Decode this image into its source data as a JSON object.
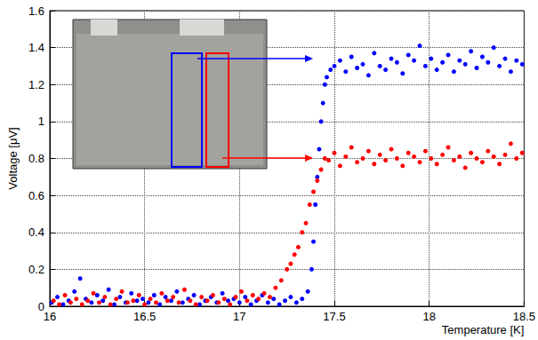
{
  "chart_data": {
    "type": "scatter",
    "x_label": "Temperature [K]",
    "y_label": "Voltage [μV]",
    "xlim": [
      16,
      18.5
    ],
    "xticks": [
      16,
      16.5,
      17,
      17.5,
      18,
      18.5
    ],
    "ylim": [
      0,
      1.6
    ],
    "yticks": [
      0,
      0.2,
      0.4,
      0.6,
      0.8,
      1,
      1.2,
      1.4,
      1.6
    ],
    "grid": true,
    "marker": "circle",
    "series": [
      {
        "color": "#0000ff",
        "x": [
          16.01,
          16.04,
          16.07,
          16.1,
          16.13,
          16.16,
          16.19,
          16.22,
          16.25,
          16.28,
          16.31,
          16.34,
          16.37,
          16.4,
          16.43,
          16.46,
          16.49,
          16.52,
          16.55,
          16.58,
          16.61,
          16.64,
          16.67,
          16.7,
          16.73,
          16.76,
          16.79,
          16.82,
          16.85,
          16.88,
          16.91,
          16.94,
          16.97,
          17.0,
          17.03,
          17.06,
          17.09,
          17.12,
          17.15,
          17.18,
          17.21,
          17.24,
          17.27,
          17.3,
          17.33,
          17.36,
          17.38,
          17.39,
          17.4,
          17.41,
          17.42,
          17.43,
          17.44,
          17.45,
          17.46,
          17.48,
          17.5,
          17.53,
          17.56,
          17.59,
          17.62,
          17.65,
          17.68,
          17.71,
          17.74,
          17.77,
          17.8,
          17.83,
          17.86,
          17.89,
          17.92,
          17.95,
          17.98,
          18.01,
          18.04,
          18.07,
          18.1,
          18.13,
          18.16,
          18.19,
          18.22,
          18.25,
          18.28,
          18.31,
          18.34,
          18.37,
          18.4,
          18.43,
          18.46,
          18.49
        ],
        "values": [
          0.02,
          0.05,
          0.01,
          0.03,
          0.08,
          0.15,
          0.04,
          0.02,
          0.06,
          0.03,
          0.09,
          0.01,
          0.05,
          0.02,
          0.07,
          0.03,
          0.04,
          0.02,
          0.06,
          0.01,
          0.05,
          0.03,
          0.08,
          0.02,
          0.04,
          0.06,
          0.01,
          0.03,
          0.05,
          0.02,
          0.07,
          0.03,
          0.04,
          0.02,
          0.05,
          0.01,
          0.03,
          0.06,
          0.02,
          0.04,
          0.01,
          0.03,
          0.05,
          0.02,
          0.04,
          0.08,
          0.2,
          0.35,
          0.55,
          0.7,
          0.85,
          1.0,
          1.1,
          1.2,
          1.24,
          1.28,
          1.3,
          1.33,
          1.27,
          1.35,
          1.29,
          1.31,
          1.25,
          1.37,
          1.3,
          1.28,
          1.34,
          1.32,
          1.26,
          1.36,
          1.33,
          1.41,
          1.3,
          1.34,
          1.28,
          1.32,
          1.36,
          1.27,
          1.33,
          1.31,
          1.38,
          1.29,
          1.35,
          1.32,
          1.4,
          1.3,
          1.34,
          1.27,
          1.33,
          1.31
        ]
      },
      {
        "color": "#ff0000",
        "x": [
          16.02,
          16.05,
          16.08,
          16.11,
          16.14,
          16.17,
          16.2,
          16.23,
          16.26,
          16.29,
          16.32,
          16.35,
          16.38,
          16.41,
          16.44,
          16.47,
          16.5,
          16.53,
          16.56,
          16.59,
          16.62,
          16.65,
          16.68,
          16.71,
          16.74,
          16.77,
          16.8,
          16.83,
          16.86,
          16.89,
          16.92,
          16.95,
          16.98,
          17.01,
          17.04,
          17.07,
          17.1,
          17.13,
          17.16,
          17.19,
          17.22,
          17.25,
          17.27,
          17.29,
          17.31,
          17.33,
          17.35,
          17.37,
          17.39,
          17.41,
          17.43,
          17.45,
          17.47,
          17.5,
          17.53,
          17.56,
          17.59,
          17.62,
          17.65,
          17.68,
          17.71,
          17.74,
          17.77,
          17.8,
          17.83,
          17.86,
          17.89,
          17.92,
          17.95,
          17.98,
          18.01,
          18.04,
          18.07,
          18.1,
          18.13,
          18.16,
          18.19,
          18.22,
          18.25,
          18.28,
          18.31,
          18.34,
          18.37,
          18.4,
          18.43,
          18.46,
          18.49
        ],
        "values": [
          0.03,
          0.01,
          0.06,
          0.02,
          0.04,
          0.01,
          0.03,
          0.07,
          0.02,
          0.05,
          0.01,
          0.04,
          0.08,
          0.02,
          0.03,
          0.06,
          0.01,
          0.04,
          0.02,
          0.07,
          0.03,
          0.05,
          0.02,
          0.09,
          0.03,
          0.01,
          0.05,
          0.03,
          0.06,
          0.02,
          0.04,
          0.01,
          0.05,
          0.08,
          0.03,
          0.06,
          0.04,
          0.07,
          0.05,
          0.1,
          0.14,
          0.2,
          0.23,
          0.28,
          0.32,
          0.4,
          0.45,
          0.55,
          0.62,
          0.68,
          0.74,
          0.8,
          0.79,
          0.83,
          0.76,
          0.81,
          0.86,
          0.78,
          0.8,
          0.84,
          0.77,
          0.82,
          0.79,
          0.85,
          0.8,
          0.76,
          0.83,
          0.81,
          0.78,
          0.84,
          0.8,
          0.77,
          0.82,
          0.86,
          0.79,
          0.81,
          0.75,
          0.83,
          0.8,
          0.78,
          0.84,
          0.81,
          0.77,
          0.82,
          0.88,
          0.8,
          0.83
        ]
      }
    ]
  }
}
